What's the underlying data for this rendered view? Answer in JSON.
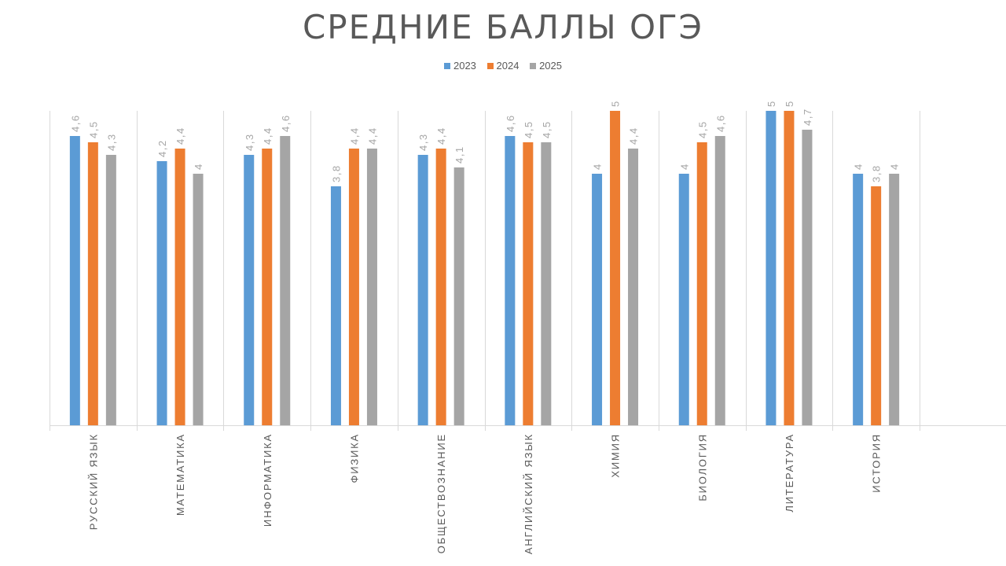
{
  "colors": {
    "2023": "#5b9bd5",
    "2024": "#ed7d31",
    "2025": "#a5a5a5",
    "grid": "#d9d9d9",
    "text": "#595959",
    "label": "#a6a6a6"
  },
  "chart_data": {
    "type": "bar",
    "title": "СРЕДНИЕ БАЛЛЫ ОГЭ",
    "xlabel": "",
    "ylabel": "",
    "ylim": [
      0,
      5
    ],
    "grid": false,
    "legend_position": "top",
    "categories": [
      "РУССКИЙ ЯЗЫК",
      "МАТЕМАТИКА",
      "ИНФОРМАТИКА",
      "ФИЗИКА",
      "ОБЩЕСТВОЗНАНИЕ",
      "АНГЛИЙСКИЙ ЯЗЫК",
      "ХИМИЯ",
      "БИОЛОГИЯ",
      "ЛИТЕРАТУРА",
      "ИСТОРИЯ"
    ],
    "series": [
      {
        "name": "2023",
        "values": [
          4.6,
          4.2,
          4.3,
          3.8,
          4.3,
          4.6,
          4,
          4,
          5,
          4
        ],
        "labels": [
          "4,6",
          "4,2",
          "4,3",
          "3,8",
          "4,3",
          "4,6",
          "4",
          "4",
          "5",
          "4"
        ]
      },
      {
        "name": "2024",
        "values": [
          4.5,
          4.4,
          4.4,
          4.4,
          4.4,
          4.5,
          5,
          4.5,
          5,
          3.8
        ],
        "labels": [
          "4,5",
          "4,4",
          "4,4",
          "4,4",
          "4,4",
          "4,5",
          "5",
          "4,5",
          "5",
          "3,8"
        ]
      },
      {
        "name": "2025",
        "values": [
          4.3,
          4,
          4.6,
          4.4,
          4.1,
          4.5,
          4.4,
          4.6,
          4.7,
          4
        ],
        "labels": [
          "4,3",
          "4",
          "4,6",
          "4,4",
          "4,1",
          "4,5",
          "4,4",
          "4,6",
          "4,7",
          "4"
        ]
      }
    ]
  }
}
